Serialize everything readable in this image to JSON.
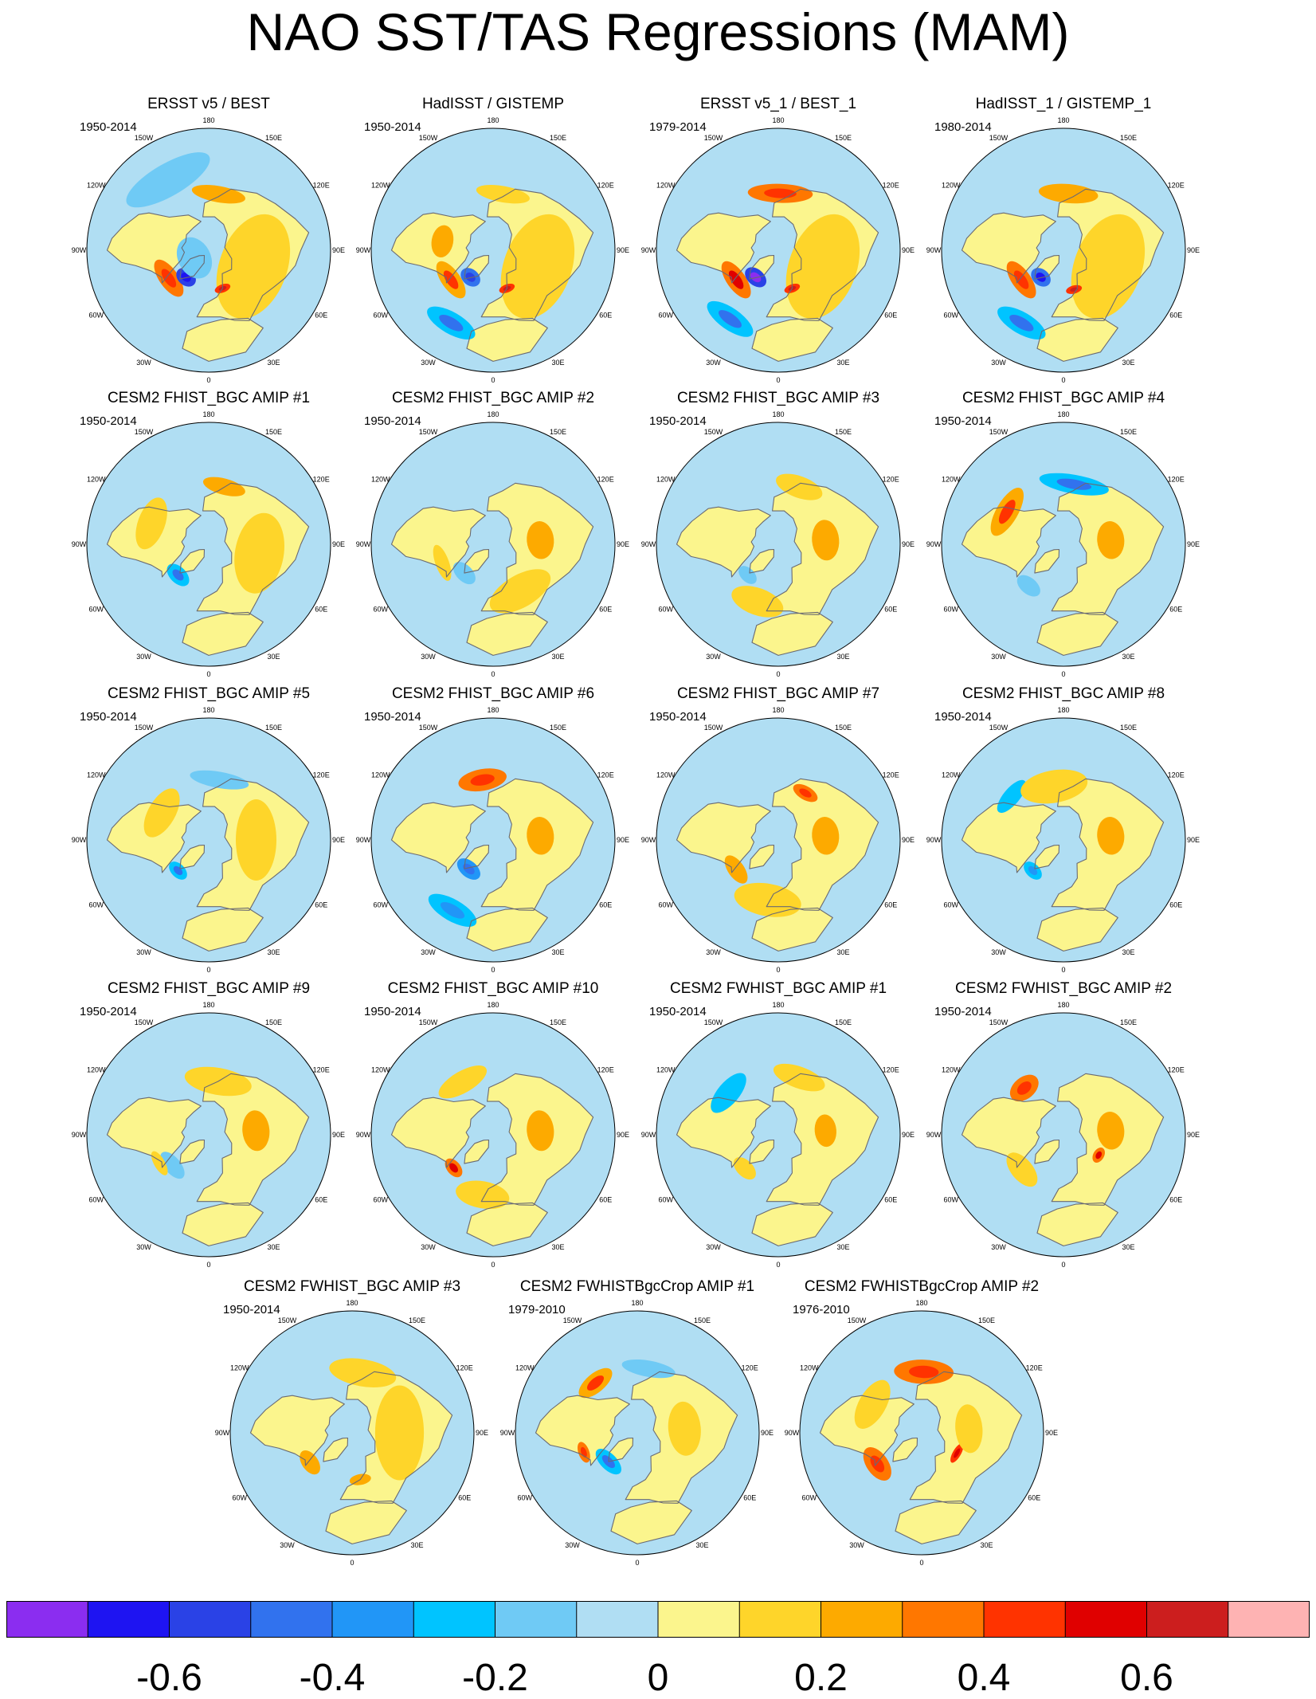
{
  "title": "NAO SST/TAS Regressions (MAM)",
  "lon_labels": [
    "180",
    "150E",
    "120E",
    "90E",
    "60E",
    "30E",
    "0",
    "30W",
    "60W",
    "90W",
    "120W",
    "150W"
  ],
  "panels": [
    {
      "title": "ERSST v5 / BEST",
      "period": "1950-2014",
      "anomalies": [
        {
          "lon": -55,
          "colat": 36,
          "rx": 16,
          "ry": 7,
          "level": 0.32
        },
        {
          "lon": -40,
          "colat": 26,
          "rx": 8,
          "ry": 6,
          "level": -0.52
        },
        {
          "lon": 170,
          "colat": 42,
          "rx": 20,
          "ry": 6,
          "level": 0.22
        },
        {
          "lon": -62,
          "colat": 12,
          "rx": 16,
          "ry": 12,
          "level": -0.12
        },
        {
          "lon": 70,
          "colat": 35,
          "rx": 40,
          "ry": 25,
          "level": 0.12
        },
        {
          "lon": -150,
          "colat": 60,
          "rx": 35,
          "ry": 12,
          "level": -0.12
        },
        {
          "lon": 20,
          "colat": 30,
          "rx": 6,
          "ry": 3,
          "level": 0.45
        }
      ]
    },
    {
      "title": "HadISST / GISTEMP",
      "period": "1950-2014",
      "anomalies": [
        {
          "lon": -55,
          "colat": 38,
          "rx": 16,
          "ry": 7,
          "level": 0.28
        },
        {
          "lon": -40,
          "colat": 26,
          "rx": 8,
          "ry": 6,
          "level": -0.45
        },
        {
          "lon": 170,
          "colat": 42,
          "rx": 20,
          "ry": 6,
          "level": 0.15
        },
        {
          "lon": -100,
          "colat": 38,
          "rx": 12,
          "ry": 8,
          "level": 0.22
        },
        {
          "lon": 70,
          "colat": 35,
          "rx": 40,
          "ry": 25,
          "level": 0.12
        },
        {
          "lon": -30,
          "colat": 62,
          "rx": 20,
          "ry": 8,
          "level": -0.3
        },
        {
          "lon": 20,
          "colat": 30,
          "rx": 6,
          "ry": 3,
          "level": 0.45
        }
      ]
    },
    {
      "title": "ERSST v5_1 / BEST_1",
      "period": "1979-2014",
      "anomalies": [
        {
          "lon": -55,
          "colat": 38,
          "rx": 16,
          "ry": 7,
          "level": 0.35
        },
        {
          "lon": -40,
          "colat": 26,
          "rx": 9,
          "ry": 6,
          "level": -0.55
        },
        {
          "lon": 178,
          "colat": 42,
          "rx": 24,
          "ry": 7,
          "level": 0.32
        },
        {
          "lon": -35,
          "colat": 62,
          "rx": 20,
          "ry": 8,
          "level": -0.3
        },
        {
          "lon": 70,
          "colat": 35,
          "rx": 40,
          "ry": 25,
          "level": 0.12
        },
        {
          "lon": 20,
          "colat": 30,
          "rx": 6,
          "ry": 3,
          "level": 0.45
        }
      ]
    },
    {
      "title": "HadISST_1 / GISTEMP_1",
      "period": "1980-2014",
      "anomalies": [
        {
          "lon": -55,
          "colat": 38,
          "rx": 16,
          "ry": 7,
          "level": 0.3
        },
        {
          "lon": -40,
          "colat": 26,
          "rx": 8,
          "ry": 6,
          "level": -0.5
        },
        {
          "lon": 175,
          "colat": 42,
          "rx": 22,
          "ry": 7,
          "level": 0.22
        },
        {
          "lon": -30,
          "colat": 62,
          "rx": 20,
          "ry": 8,
          "level": -0.3
        },
        {
          "lon": 70,
          "colat": 35,
          "rx": 40,
          "ry": 25,
          "level": 0.12
        },
        {
          "lon": 15,
          "colat": 30,
          "rx": 6,
          "ry": 3,
          "level": 0.45
        }
      ]
    },
    {
      "title": "CESM2 FHIST_BGC AMIP #1",
      "period": "1950-2014",
      "anomalies": [
        {
          "lon": 165,
          "colat": 44,
          "rx": 16,
          "ry": 6,
          "level": 0.22
        },
        {
          "lon": -45,
          "colat": 32,
          "rx": 10,
          "ry": 6,
          "level": -0.3
        },
        {
          "lon": 80,
          "colat": 38,
          "rx": 30,
          "ry": 18,
          "level": 0.12
        },
        {
          "lon": -110,
          "colat": 45,
          "rx": 20,
          "ry": 10,
          "level": 0.12
        }
      ]
    },
    {
      "title": "CESM2 FHIST_BGC AMIP #2",
      "period": "1950-2014",
      "anomalies": [
        {
          "lon": 95,
          "colat": 35,
          "rx": 14,
          "ry": 10,
          "level": 0.22
        },
        {
          "lon": -45,
          "colat": 30,
          "rx": 10,
          "ry": 6,
          "level": -0.2
        },
        {
          "lon": -70,
          "colat": 40,
          "rx": 14,
          "ry": 5,
          "level": 0.15
        },
        {
          "lon": 30,
          "colat": 40,
          "rx": 25,
          "ry": 12,
          "level": 0.12
        }
      ]
    },
    {
      "title": "CESM2 FHIST_BGC AMIP #3",
      "period": "1950-2014",
      "anomalies": [
        {
          "lon": 95,
          "colat": 35,
          "rx": 15,
          "ry": 10,
          "level": 0.22
        },
        {
          "lon": -45,
          "colat": 32,
          "rx": 8,
          "ry": 5,
          "level": -0.18
        },
        {
          "lon": 160,
          "colat": 45,
          "rx": 18,
          "ry": 8,
          "level": 0.12
        },
        {
          "lon": -20,
          "colat": 45,
          "rx": 20,
          "ry": 10,
          "level": 0.12
        }
      ]
    },
    {
      "title": "CESM2 FHIST_BGC AMIP #4",
      "period": "1950-2014",
      "anomalies": [
        {
          "lon": 170,
          "colat": 45,
          "rx": 26,
          "ry": 7,
          "level": -0.3
        },
        {
          "lon": -120,
          "colat": 48,
          "rx": 20,
          "ry": 8,
          "level": 0.25
        },
        {
          "lon": 95,
          "colat": 35,
          "rx": 14,
          "ry": 10,
          "level": 0.22
        },
        {
          "lon": -40,
          "colat": 40,
          "rx": 10,
          "ry": 6,
          "level": -0.2
        }
      ]
    },
    {
      "title": "CESM2 FHIST_BGC AMIP #5",
      "period": "1950-2014",
      "anomalies": [
        {
          "lon": 170,
          "colat": 45,
          "rx": 22,
          "ry": 6,
          "level": -0.2
        },
        {
          "lon": -45,
          "colat": 32,
          "rx": 8,
          "ry": 5,
          "level": -0.3
        },
        {
          "lon": 90,
          "colat": 35,
          "rx": 30,
          "ry": 15,
          "level": 0.12
        },
        {
          "lon": -120,
          "colat": 40,
          "rx": 20,
          "ry": 10,
          "level": 0.12
        }
      ]
    },
    {
      "title": "CESM2 FHIST_BGC AMIP #6",
      "period": "1950-2014",
      "anomalies": [
        {
          "lon": -170,
          "colat": 45,
          "rx": 18,
          "ry": 8,
          "level": 0.3
        },
        {
          "lon": 95,
          "colat": 35,
          "rx": 14,
          "ry": 10,
          "level": 0.22
        },
        {
          "lon": -40,
          "colat": 28,
          "rx": 10,
          "ry": 6,
          "level": -0.35
        },
        {
          "lon": -30,
          "colat": 60,
          "rx": 20,
          "ry": 8,
          "level": -0.25
        }
      ]
    },
    {
      "title": "CESM2 FHIST_BGC AMIP #7",
      "period": "1950-2014",
      "anomalies": [
        {
          "lon": 95,
          "colat": 35,
          "rx": 14,
          "ry": 10,
          "level": 0.22
        },
        {
          "lon": -55,
          "colat": 38,
          "rx": 12,
          "ry": 6,
          "level": 0.2
        },
        {
          "lon": 150,
          "colat": 40,
          "rx": 10,
          "ry": 5,
          "level": 0.3
        },
        {
          "lon": -10,
          "colat": 45,
          "rx": 25,
          "ry": 12,
          "level": 0.12
        }
      ]
    },
    {
      "title": "CESM2 FHIST_BGC AMIP #8",
      "period": "1950-2014",
      "anomalies": [
        {
          "lon": 95,
          "colat": 35,
          "rx": 14,
          "ry": 10,
          "level": 0.22
        },
        {
          "lon": -45,
          "colat": 32,
          "rx": 8,
          "ry": 5,
          "level": -0.25
        },
        {
          "lon": -130,
          "colat": 50,
          "rx": 15,
          "ry": 6,
          "level": -0.22
        },
        {
          "lon": -170,
          "colat": 40,
          "rx": 25,
          "ry": 12,
          "level": 0.12
        }
      ]
    },
    {
      "title": "CESM2 FHIST_BGC AMIP #9",
      "period": "1950-2014",
      "anomalies": [
        {
          "lon": 95,
          "colat": 35,
          "rx": 15,
          "ry": 10,
          "level": 0.22
        },
        {
          "lon": -50,
          "colat": 35,
          "rx": 12,
          "ry": 6,
          "level": -0.2
        },
        {
          "lon": 170,
          "colat": 40,
          "rx": 25,
          "ry": 10,
          "level": 0.12
        },
        {
          "lon": -60,
          "colat": 42,
          "rx": 10,
          "ry": 4,
          "level": 0.15
        }
      ]
    },
    {
      "title": "CESM2 FHIST_BGC AMIP #10",
      "period": "1950-2014",
      "anomalies": [
        {
          "lon": 95,
          "colat": 35,
          "rx": 15,
          "ry": 10,
          "level": 0.22
        },
        {
          "lon": -50,
          "colat": 38,
          "rx": 8,
          "ry": 5,
          "level": 0.35
        },
        {
          "lon": -10,
          "colat": 45,
          "rx": 20,
          "ry": 10,
          "level": 0.12
        },
        {
          "lon": -150,
          "colat": 45,
          "rx": 20,
          "ry": 8,
          "level": 0.12
        }
      ]
    },
    {
      "title": "CESM2 FWHIST_BGC AMIP #1",
      "period": "1950-2014",
      "anomalies": [
        {
          "lon": -130,
          "colat": 48,
          "rx": 18,
          "ry": 8,
          "level": -0.22
        },
        {
          "lon": 95,
          "colat": 35,
          "rx": 12,
          "ry": 8,
          "level": 0.2
        },
        {
          "lon": -45,
          "colat": 35,
          "rx": 10,
          "ry": 6,
          "level": 0.15
        },
        {
          "lon": 160,
          "colat": 45,
          "rx": 20,
          "ry": 8,
          "level": 0.12
        }
      ]
    },
    {
      "title": "CESM2 FWHIST_BGC AMIP #2",
      "period": "1950-2014",
      "anomalies": [
        {
          "lon": -140,
          "colat": 45,
          "rx": 12,
          "ry": 8,
          "level": 0.32
        },
        {
          "lon": 95,
          "colat": 35,
          "rx": 14,
          "ry": 10,
          "level": 0.2
        },
        {
          "lon": 60,
          "colat": 30,
          "rx": 6,
          "ry": 4,
          "level": 0.35
        },
        {
          "lon": -50,
          "colat": 40,
          "rx": 15,
          "ry": 8,
          "level": 0.12
        }
      ]
    },
    {
      "title": "CESM2 FWHIST_BGC AMIP #3",
      "period": "1950-2014",
      "anomalies": [
        {
          "lon": -55,
          "colat": 38,
          "rx": 10,
          "ry": 6,
          "level": 0.2
        },
        {
          "lon": 10,
          "colat": 35,
          "rx": 8,
          "ry": 4,
          "level": 0.2
        },
        {
          "lon": 90,
          "colat": 35,
          "rx": 35,
          "ry": 18,
          "level": 0.12
        },
        {
          "lon": 170,
          "colat": 45,
          "rx": 25,
          "ry": 10,
          "level": 0.12
        }
      ]
    },
    {
      "title": "CESM2 FWHISTBgcCrop AMIP #1",
      "period": "1979-2010",
      "anomalies": [
        {
          "lon": -140,
          "colat": 48,
          "rx": 15,
          "ry": 7,
          "level": 0.25
        },
        {
          "lon": -45,
          "colat": 30,
          "rx": 12,
          "ry": 6,
          "level": -0.3
        },
        {
          "lon": -70,
          "colat": 42,
          "rx": 8,
          "ry": 4,
          "level": 0.3
        },
        {
          "lon": 170,
          "colat": 48,
          "rx": 20,
          "ry": 6,
          "level": -0.15
        },
        {
          "lon": 95,
          "colat": 35,
          "rx": 20,
          "ry": 12,
          "level": 0.12
        }
      ]
    },
    {
      "title": "CESM2 FWHISTBgcCrop AMIP #2",
      "period": "1976-2010",
      "anomalies": [
        {
          "lon": 178,
          "colat": 45,
          "rx": 22,
          "ry": 9,
          "level": 0.32
        },
        {
          "lon": -55,
          "colat": 40,
          "rx": 14,
          "ry": 8,
          "level": 0.32
        },
        {
          "lon": 60,
          "colat": 30,
          "rx": 8,
          "ry": 3,
          "level": 0.4
        },
        {
          "lon": 95,
          "colat": 35,
          "rx": 18,
          "ry": 10,
          "level": 0.15
        },
        {
          "lon": -120,
          "colat": 42,
          "rx": 20,
          "ry": 10,
          "level": 0.15
        }
      ]
    }
  ],
  "colorbar": {
    "colors": [
      "#8b2df0",
      "#1e14f2",
      "#2a42e6",
      "#3172ee",
      "#2196f7",
      "#00c4ff",
      "#6fcaf5",
      "#b0def3",
      "#fbf58d",
      "#fed52a",
      "#fdaa00",
      "#ff7700",
      "#ff3300",
      "#e00000",
      "#cc1e1e",
      "#feb3b3"
    ],
    "thresholds": [
      -0.7,
      -0.6,
      -0.5,
      -0.4,
      -0.3,
      -0.2,
      -0.1,
      0,
      0.1,
      0.2,
      0.3,
      0.4,
      0.5,
      0.6,
      0.7
    ],
    "tick_labels": [
      {
        "label": "-0.6",
        "value": -0.6
      },
      {
        "label": "-0.4",
        "value": -0.4
      },
      {
        "label": "-0.2",
        "value": -0.2
      },
      {
        "label": "0",
        "value": 0
      },
      {
        "label": "0.2",
        "value": 0.2
      },
      {
        "label": "0.4",
        "value": 0.4
      },
      {
        "label": "0.6",
        "value": 0.6
      }
    ]
  }
}
